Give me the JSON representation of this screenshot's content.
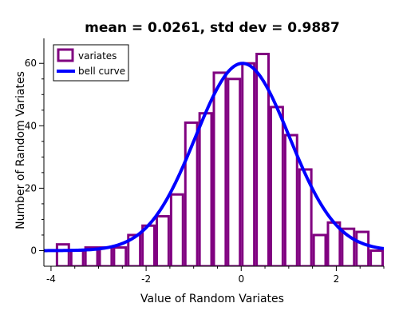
{
  "chart_data": {
    "type": "bar",
    "title": "mean = 0.0261,  std dev = 0.9887",
    "xlabel": "Value of Random Variates",
    "ylabel": "Number of Random Variates",
    "xlim": [
      -4.15,
      3.0
    ],
    "ylim": [
      -5,
      68
    ],
    "xticks": [
      -4,
      -2,
      0,
      2
    ],
    "yticks": [
      0,
      20,
      40,
      60
    ],
    "bin_width": 0.3,
    "bins": [
      {
        "x": -3.75,
        "value": 2
      },
      {
        "x": -3.45,
        "value": 0
      },
      {
        "x": -3.15,
        "value": 1
      },
      {
        "x": -2.85,
        "value": 1
      },
      {
        "x": -2.55,
        "value": 1
      },
      {
        "x": -2.25,
        "value": 5
      },
      {
        "x": -1.95,
        "value": 8
      },
      {
        "x": -1.65,
        "value": 11
      },
      {
        "x": -1.35,
        "value": 18
      },
      {
        "x": -1.05,
        "value": 41
      },
      {
        "x": -0.75,
        "value": 44
      },
      {
        "x": -0.45,
        "value": 57
      },
      {
        "x": -0.15,
        "value": 55
      },
      {
        "x": 0.15,
        "value": 60
      },
      {
        "x": 0.45,
        "value": 63
      },
      {
        "x": 0.75,
        "value": 46
      },
      {
        "x": 1.05,
        "value": 37
      },
      {
        "x": 1.35,
        "value": 26
      },
      {
        "x": 1.65,
        "value": 5
      },
      {
        "x": 1.95,
        "value": 9
      },
      {
        "x": 2.25,
        "value": 7
      },
      {
        "x": 2.55,
        "value": 6
      },
      {
        "x": 2.85,
        "value": 0
      }
    ],
    "series": [
      {
        "name": "variates",
        "kind": "histogram",
        "color": "#800080"
      },
      {
        "name": "bell curve",
        "kind": "line",
        "color": "#0000ff",
        "mean": 0.0261,
        "std": 0.9887,
        "peak": 60
      }
    ],
    "grid": false,
    "legend_position": "top-left"
  }
}
